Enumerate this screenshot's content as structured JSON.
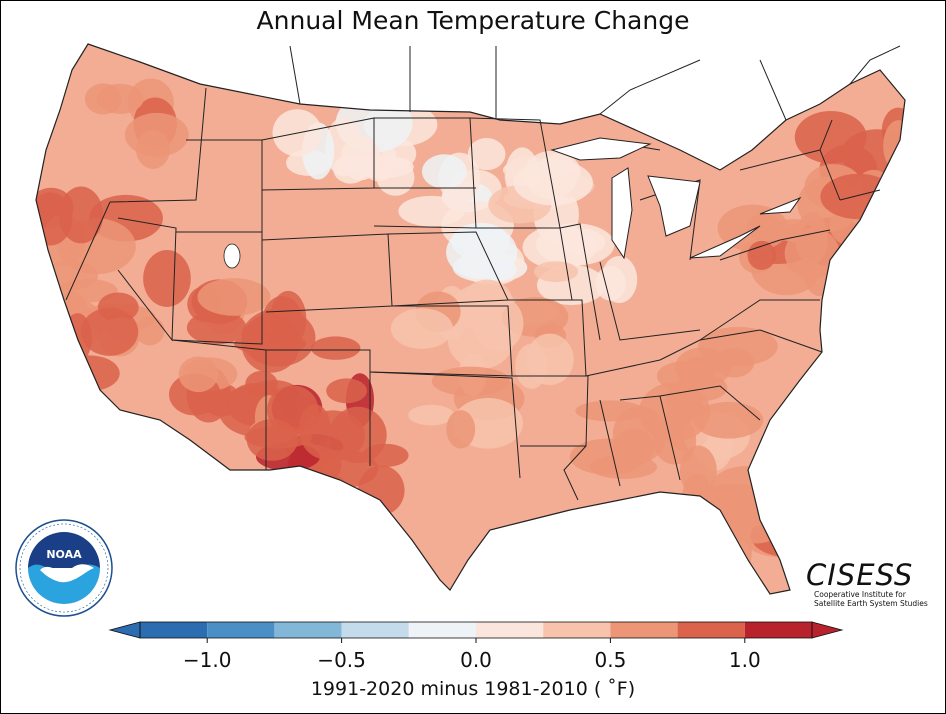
{
  "title": "Annual Mean Temperature Change",
  "colorbar": {
    "caption": "1991-2020 minus 1981-2010 ( ˚F)",
    "range": [
      -1.25,
      1.25
    ],
    "bins": [
      {
        "from": -1.25,
        "to": -1.0,
        "color": "#2b6db0"
      },
      {
        "from": -1.0,
        "to": -0.75,
        "color": "#4a90c6"
      },
      {
        "from": -0.75,
        "to": -0.5,
        "color": "#83b7d8"
      },
      {
        "from": -0.5,
        "to": -0.25,
        "color": "#c4dbeb"
      },
      {
        "from": -0.25,
        "to": 0.0,
        "color": "#eef3f7"
      },
      {
        "from": 0.0,
        "to": 0.25,
        "color": "#fbe6dd"
      },
      {
        "from": 0.25,
        "to": 0.5,
        "color": "#f7c3ad"
      },
      {
        "from": 0.5,
        "to": 0.75,
        "color": "#ec9577"
      },
      {
        "from": 0.75,
        "to": 1.0,
        "color": "#db624b"
      },
      {
        "from": 1.0,
        "to": 1.25,
        "color": "#b8222d"
      }
    ],
    "ticks": [
      {
        "value": -1.0,
        "label": "−1.0"
      },
      {
        "value": -0.5,
        "label": "−0.5"
      },
      {
        "value": 0.0,
        "label": "0.0"
      },
      {
        "value": 0.5,
        "label": "0.5"
      },
      {
        "value": 1.0,
        "label": "1.0"
      }
    ],
    "extend": "both"
  },
  "logos": {
    "noaa": {
      "text": "NOAA",
      "ring_text": "NATIONAL OCEANIC AND ATMOSPHERIC ADMINISTRATION · U.S. DEPARTMENT OF COMMERCE"
    },
    "cisess": {
      "name": "CISESS",
      "line1": "Cooperative Institute for",
      "line2": "Satellite Earth System Studies"
    }
  },
  "map": {
    "land_color": "#f3b49c",
    "ocean_color": "#ffffff",
    "border_color": "#222222",
    "regions": [
      {
        "name": "northern-plains",
        "value": 0.05
      },
      {
        "name": "upper-midwest",
        "value": 0.15
      },
      {
        "name": "southwest",
        "value": 0.85
      },
      {
        "name": "texas-west",
        "value": 0.95
      },
      {
        "name": "west-coast",
        "value": 0.7
      },
      {
        "name": "northeast",
        "value": 0.7
      },
      {
        "name": "southeast",
        "value": 0.6
      },
      {
        "name": "central",
        "value": 0.4
      },
      {
        "name": "florida",
        "value": 0.65
      }
    ]
  }
}
